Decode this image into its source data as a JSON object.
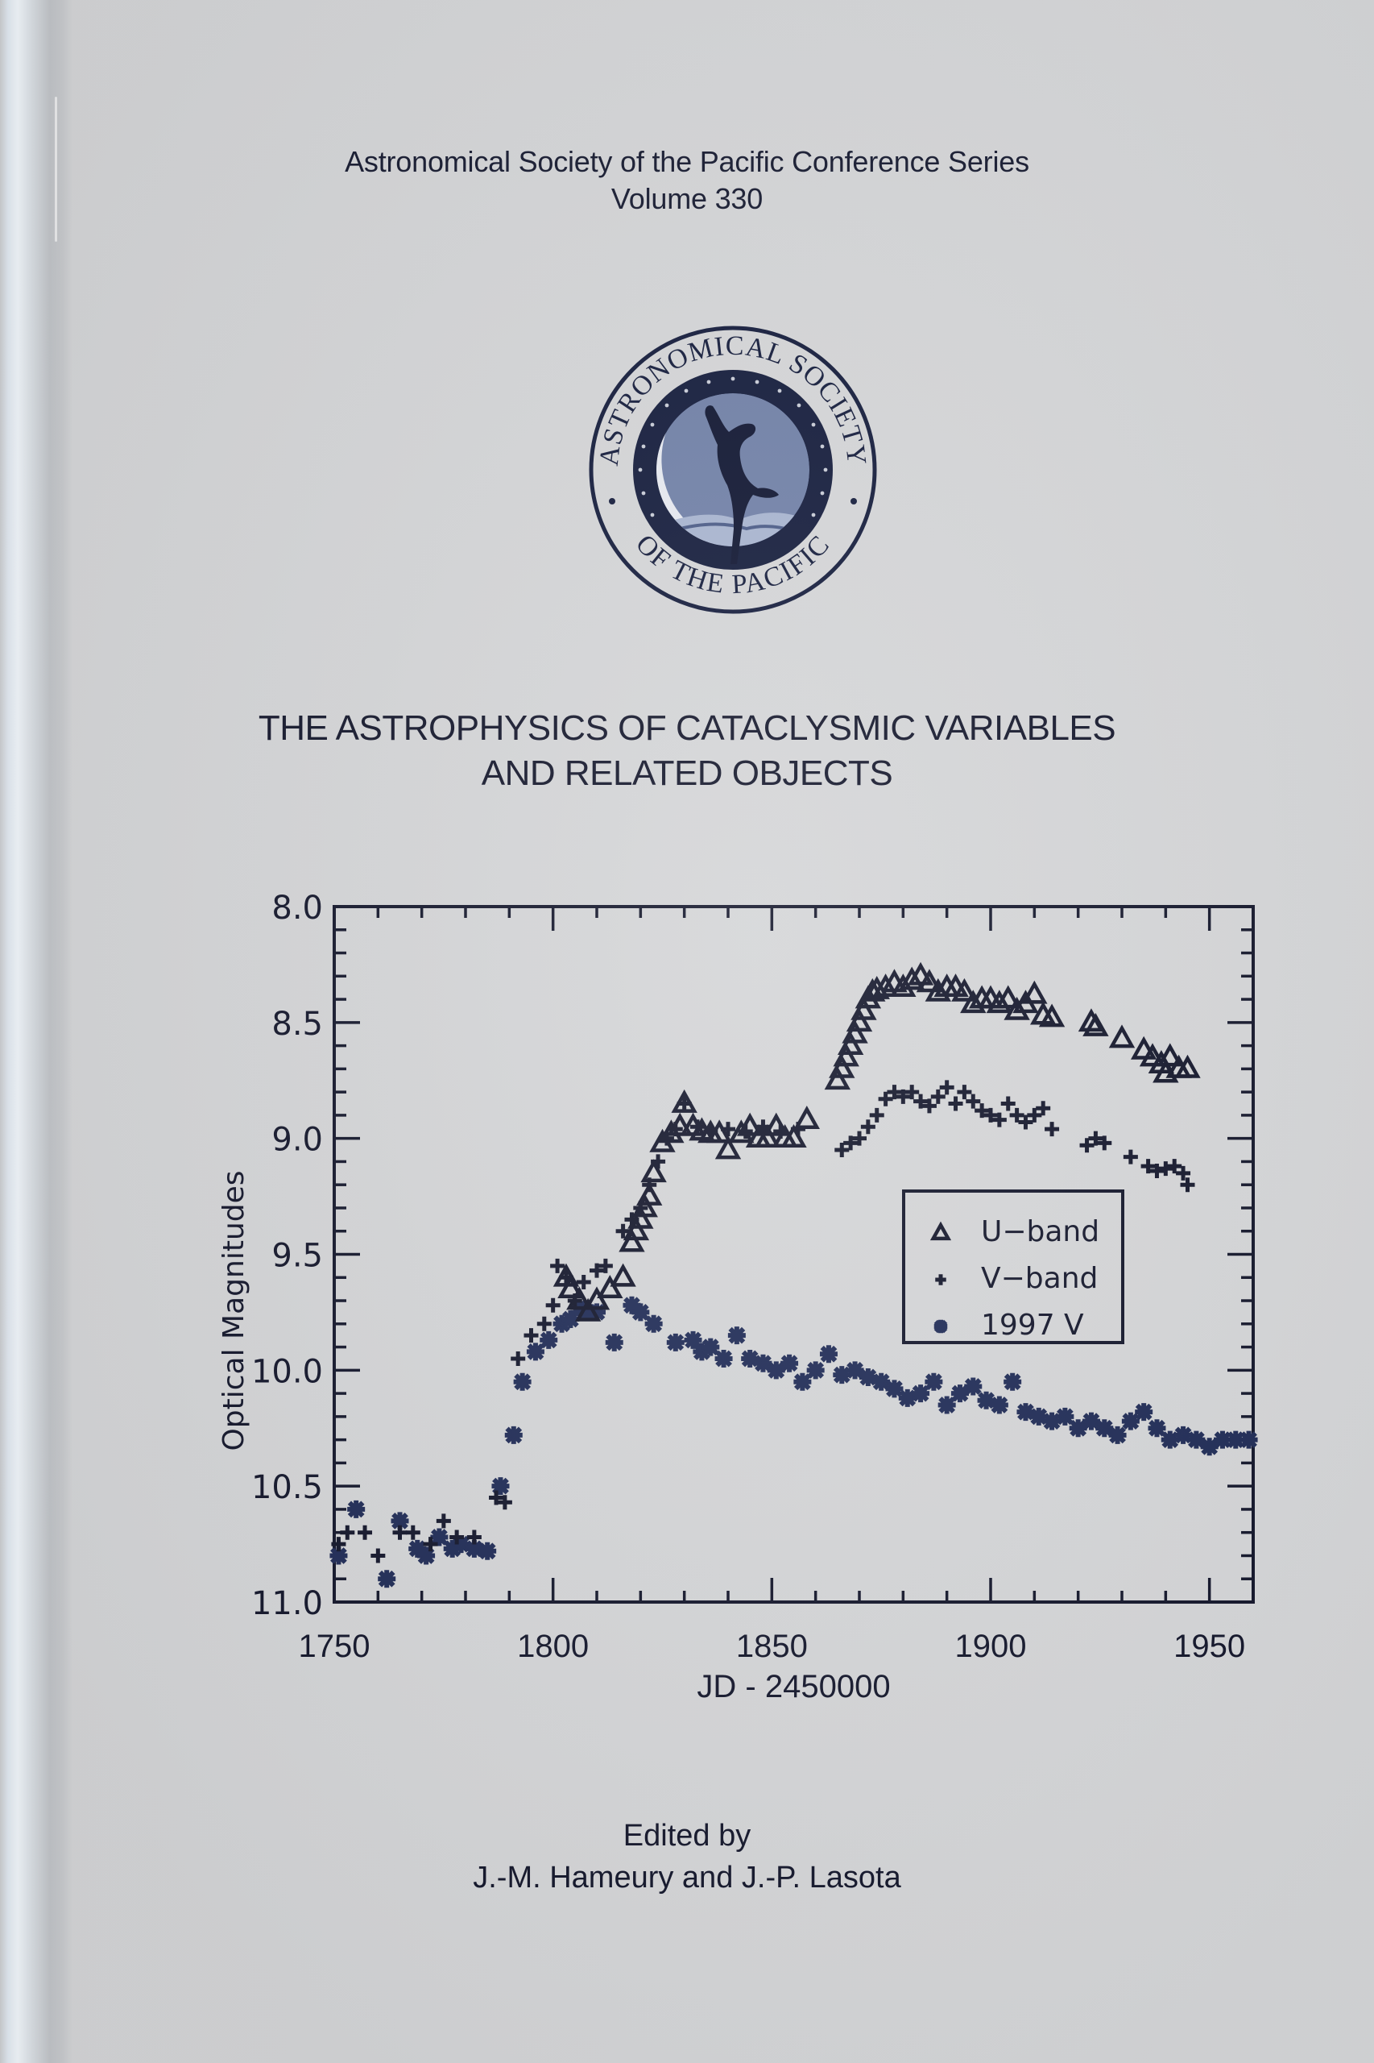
{
  "cover": {
    "series_line1": "Astronomical Society of the Pacific Conference Series",
    "series_line2": "Volume 330",
    "logo": {
      "top_text": "ASTRONOMICAL SOCIETY",
      "bottom_text": "OF THE PACIFIC",
      "icon": "asp-seal-icon"
    },
    "title_line1": "THE ASTROPHYSICS OF CATACLYSMIC VARIABLES",
    "title_line2": "AND RELATED OBJECTS",
    "edited_by": "Edited by",
    "editors": "J.-M. Hameury and J.-P. Lasota"
  },
  "colors": {
    "ink": "#12152a",
    "marker": "#1e2a55",
    "paper": "#d5d6d8",
    "logo_moon": "#6f7fa6",
    "logo_dark": "#121a3a"
  },
  "chart_data": {
    "type": "scatter",
    "title": "",
    "xlabel": "JD - 2450000",
    "ylabel": "Optical Magnitudes",
    "xlim": [
      1750,
      1960
    ],
    "ylim": [
      11.0,
      8.0
    ],
    "y_inverted": true,
    "grid": false,
    "x_ticks": [
      1750,
      1800,
      1850,
      1900,
      1950
    ],
    "x_tick_labels": [
      "1750",
      "1800",
      "1850",
      "1900",
      "1950"
    ],
    "y_ticks": [
      8.0,
      8.5,
      9.0,
      9.5,
      10.0,
      10.5,
      11.0
    ],
    "y_tick_labels": [
      "8.0",
      "8.5",
      "9.0",
      "9.5",
      "10.0",
      "10.5",
      "11.0"
    ],
    "legend": {
      "position": "inside-right-middle",
      "entries": [
        {
          "label": "U−band",
          "marker": "triangle"
        },
        {
          "label": "V−band",
          "marker": "plus"
        },
        {
          "label": "1997 V",
          "marker": "star"
        }
      ]
    },
    "series": [
      {
        "name": "U-band",
        "marker": "triangle",
        "x": [
          1803,
          1804,
          1806,
          1808,
          1810,
          1813,
          1816,
          1818,
          1819,
          1820,
          1821,
          1822,
          1823,
          1825,
          1827,
          1829,
          1830,
          1832,
          1834,
          1836,
          1838,
          1840,
          1843,
          1845,
          1847,
          1849,
          1851,
          1853,
          1855,
          1858,
          1865,
          1866,
          1867,
          1868,
          1869,
          1870,
          1871,
          1872,
          1873,
          1874,
          1876,
          1878,
          1880,
          1882,
          1884,
          1886,
          1888,
          1890,
          1892,
          1894,
          1896,
          1898,
          1900,
          1902,
          1904,
          1906,
          1908,
          1910,
          1912,
          1914,
          1923,
          1924,
          1930,
          1935,
          1937,
          1939,
          1940,
          1941,
          1943,
          1945
        ],
        "y": [
          9.6,
          9.65,
          9.7,
          9.75,
          9.7,
          9.65,
          9.6,
          9.45,
          9.4,
          9.35,
          9.3,
          9.25,
          9.15,
          9.02,
          8.98,
          8.95,
          8.85,
          8.95,
          8.97,
          8.98,
          8.98,
          9.05,
          8.98,
          8.95,
          9.0,
          9.0,
          8.95,
          9.0,
          9.0,
          8.92,
          8.75,
          8.7,
          8.65,
          8.6,
          8.55,
          8.5,
          8.45,
          8.4,
          8.37,
          8.36,
          8.35,
          8.33,
          8.35,
          8.32,
          8.3,
          8.33,
          8.37,
          8.35,
          8.35,
          8.37,
          8.42,
          8.4,
          8.4,
          8.42,
          8.4,
          8.45,
          8.42,
          8.38,
          8.47,
          8.48,
          8.5,
          8.52,
          8.57,
          8.62,
          8.65,
          8.68,
          8.72,
          8.65,
          8.7,
          8.7
        ]
      },
      {
        "name": "V-band",
        "marker": "plus",
        "x": [
          1751,
          1753,
          1757,
          1760,
          1765,
          1768,
          1772,
          1775,
          1778,
          1782,
          1787,
          1789,
          1792,
          1795,
          1798,
          1800,
          1801,
          1803,
          1805,
          1807,
          1810,
          1812,
          1816,
          1818,
          1820,
          1822,
          1824,
          1826,
          1828,
          1830,
          1833,
          1836,
          1840,
          1844,
          1848,
          1852,
          1856,
          1866,
          1868,
          1870,
          1872,
          1874,
          1876,
          1878,
          1880,
          1882,
          1884,
          1886,
          1888,
          1890,
          1892,
          1894,
          1896,
          1898,
          1900,
          1902,
          1904,
          1906,
          1908,
          1910,
          1912,
          1914,
          1922,
          1924,
          1926,
          1932,
          1936,
          1938,
          1940,
          1942,
          1944,
          1945
        ],
        "y": [
          10.75,
          10.7,
          10.7,
          10.8,
          10.7,
          10.7,
          10.75,
          10.65,
          10.72,
          10.72,
          10.55,
          10.57,
          9.95,
          9.85,
          9.8,
          9.72,
          9.55,
          9.6,
          9.7,
          9.62,
          9.57,
          9.55,
          9.4,
          9.35,
          9.3,
          9.2,
          9.1,
          9.0,
          8.96,
          8.85,
          8.95,
          8.97,
          8.96,
          8.97,
          8.95,
          8.97,
          8.96,
          9.05,
          9.02,
          9.0,
          8.95,
          8.9,
          8.83,
          8.8,
          8.82,
          8.8,
          8.84,
          8.86,
          8.82,
          8.78,
          8.85,
          8.8,
          8.84,
          8.88,
          8.9,
          8.92,
          8.85,
          8.9,
          8.93,
          8.9,
          8.87,
          8.96,
          9.03,
          9.0,
          9.02,
          9.08,
          9.12,
          9.14,
          9.13,
          9.12,
          9.15,
          9.2
        ]
      },
      {
        "name": "1997 V",
        "marker": "star",
        "x": [
          1751,
          1755,
          1762,
          1765,
          1769,
          1771,
          1774,
          1777,
          1779,
          1782,
          1785,
          1788,
          1791,
          1793,
          1796,
          1799,
          1802,
          1804,
          1806,
          1808,
          1810,
          1814,
          1818,
          1820,
          1823,
          1828,
          1832,
          1834,
          1836,
          1839,
          1842,
          1845,
          1848,
          1851,
          1854,
          1857,
          1860,
          1863,
          1866,
          1869,
          1872,
          1875,
          1878,
          1881,
          1884,
          1887,
          1890,
          1893,
          1896,
          1899,
          1902,
          1905,
          1908,
          1911,
          1914,
          1917,
          1920,
          1923,
          1926,
          1929,
          1932,
          1935,
          1938,
          1941,
          1944,
          1947,
          1950,
          1953,
          1956,
          1959
        ],
        "y": [
          10.8,
          10.6,
          10.9,
          10.65,
          10.77,
          10.8,
          10.72,
          10.77,
          10.75,
          10.77,
          10.78,
          10.5,
          10.28,
          10.05,
          9.92,
          9.87,
          9.8,
          9.78,
          9.73,
          9.75,
          9.75,
          9.88,
          9.72,
          9.75,
          9.8,
          9.88,
          9.87,
          9.92,
          9.9,
          9.95,
          9.85,
          9.95,
          9.97,
          10.0,
          9.97,
          10.05,
          10.0,
          9.93,
          10.02,
          10.0,
          10.03,
          10.05,
          10.08,
          10.12,
          10.1,
          10.05,
          10.15,
          10.1,
          10.07,
          10.13,
          10.15,
          10.05,
          10.18,
          10.2,
          10.22,
          10.2,
          10.25,
          10.22,
          10.25,
          10.28,
          10.22,
          10.18,
          10.25,
          10.3,
          10.28,
          10.3,
          10.33,
          10.3,
          10.3,
          10.3
        ]
      }
    ]
  }
}
